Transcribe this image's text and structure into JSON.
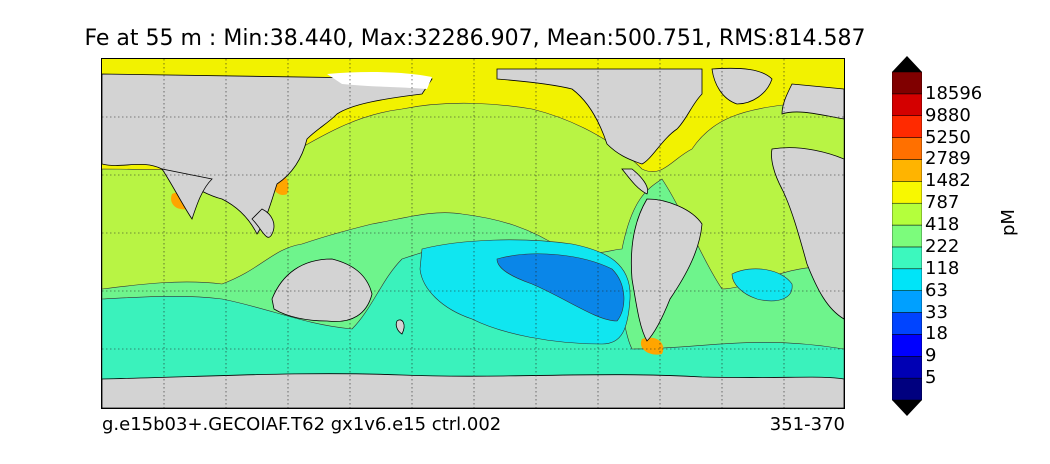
{
  "title": "Fe at 55 m : Min:38.440, Max:32286.907, Mean:500.751, RMS:814.587",
  "footer": {
    "case_name": "g.e15b03+.GECOIAF.T62 gx1v6.e15 ctrl.002",
    "year_range": "351-370"
  },
  "colorbar": {
    "units": "pM",
    "levels": [
      "5",
      "9",
      "18",
      "33",
      "63",
      "118",
      "222",
      "418",
      "787",
      "1482",
      "2789",
      "5250",
      "9880",
      "18596"
    ],
    "colors": [
      "#00007f",
      "#0000b4",
      "#0000ff",
      "#0044ff",
      "#00a0ff",
      "#00e4f8",
      "#3cf8be",
      "#7cfc7c",
      "#b4ff3c",
      "#f8f800",
      "#ffb400",
      "#ff7000",
      "#ff2a00",
      "#d40000",
      "#800000"
    ]
  },
  "map": {
    "ocean_colors": {
      "high_iron": "#f2f200",
      "moderate_iron": "#b8f444",
      "low_iron": "#6ef48c",
      "very_low_iron": "#3af2bc",
      "oligotrophic": "#10e6f0",
      "gyre_minimum": "#0a86e8",
      "coastal_orange": "#ffa500",
      "land": "#d3d3d3",
      "sea_ice_mask": "#ffffff"
    }
  }
}
